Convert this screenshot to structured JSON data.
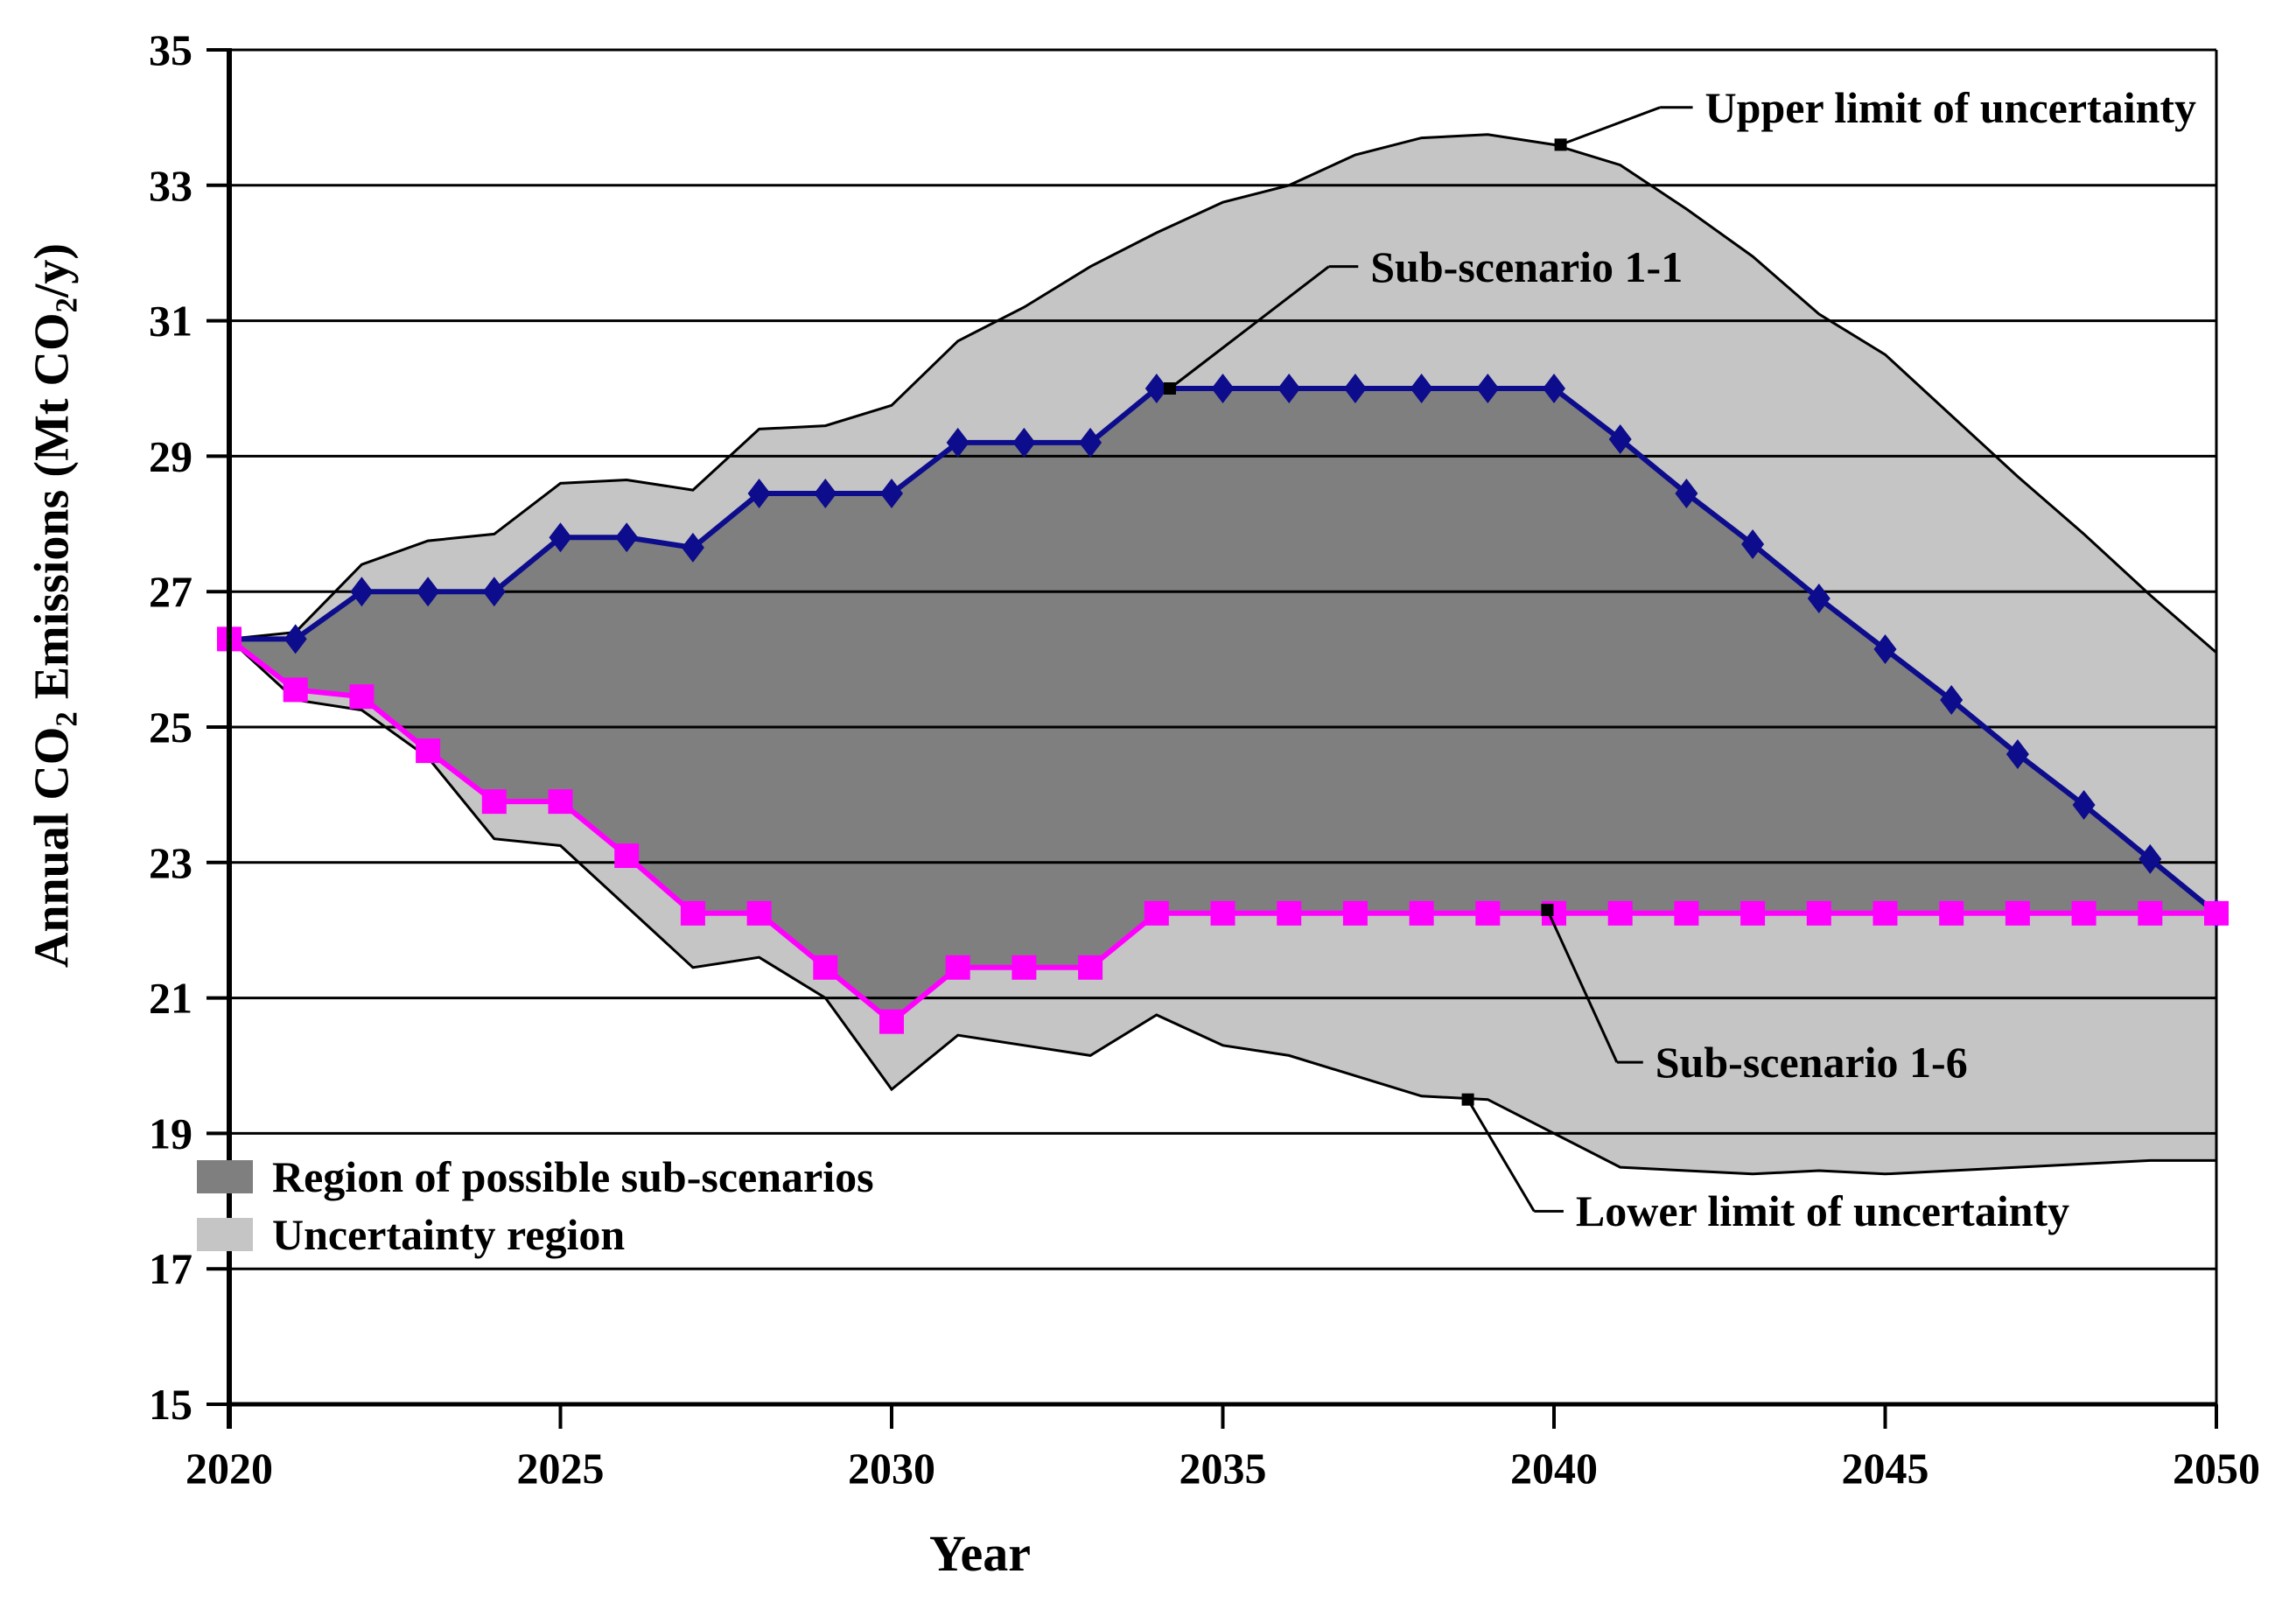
{
  "chart_data": {
    "type": "area",
    "title": "",
    "xlabel": "Year",
    "ylabel": "Annual CO₂ Emissions (Mt CO₂/y)",
    "ylabel_parts": [
      "Annual CO",
      "2",
      " Emissions (Mt CO",
      "2",
      "/y)"
    ],
    "x_range": [
      2020,
      2050
    ],
    "y_range": [
      15,
      35
    ],
    "x_ticks": [
      2020,
      2025,
      2030,
      2035,
      2040,
      2045,
      2050
    ],
    "y_ticks": [
      15,
      17,
      19,
      21,
      23,
      25,
      27,
      29,
      31,
      33,
      35
    ],
    "grid": "horizontal",
    "legend_position": "lower-left",
    "colors": {
      "region_possible": "#7F7F7F",
      "uncertainty_region": "#C5C5C5",
      "sub_scenario_1_1": "#0C0C8C",
      "sub_scenario_1_6": "#FF00FF",
      "bounds": "#000000"
    },
    "years": [
      2020,
      2021,
      2022,
      2023,
      2024,
      2025,
      2026,
      2027,
      2028,
      2029,
      2030,
      2031,
      2032,
      2033,
      2034,
      2035,
      2036,
      2037,
      2038,
      2039,
      2040,
      2041,
      2042,
      2043,
      2044,
      2045,
      2046,
      2047,
      2048,
      2049,
      2050
    ],
    "series": [
      {
        "name": "Upper limit of uncertainty",
        "role": "upper_bound",
        "marker": "none",
        "color": "#000000",
        "values": [
          26.3,
          26.4,
          27.4,
          27.75,
          27.85,
          28.6,
          28.65,
          28.5,
          29.4,
          29.45,
          29.75,
          30.7,
          31.2,
          31.8,
          32.3,
          32.75,
          33.0,
          33.45,
          33.7,
          33.75,
          33.6,
          33.3,
          32.65,
          31.95,
          31.1,
          30.5,
          29.6,
          28.7,
          27.85,
          26.95,
          26.1
        ]
      },
      {
        "name": "Sub-scenario 1-1",
        "role": "scenario_high",
        "marker": "diamond",
        "color": "#0C0C8C",
        "values": [
          26.3,
          26.3,
          27.0,
          27.0,
          27.0,
          27.8,
          27.8,
          27.65,
          28.45,
          28.45,
          28.45,
          29.2,
          29.2,
          29.2,
          30.0,
          30.0,
          30.0,
          30.0,
          30.0,
          30.0,
          30.0,
          29.25,
          28.45,
          27.7,
          26.9,
          26.15,
          25.4,
          24.6,
          23.85,
          23.05,
          22.25
        ]
      },
      {
        "name": "Sub-scenario 1-6",
        "role": "scenario_low",
        "marker": "square",
        "color": "#FF00FF",
        "values": [
          26.3,
          25.55,
          25.45,
          24.65,
          23.9,
          23.9,
          23.1,
          22.25,
          22.25,
          21.45,
          20.65,
          21.45,
          21.45,
          21.45,
          22.25,
          22.25,
          22.25,
          22.25,
          22.25,
          22.25,
          22.25,
          22.25,
          22.25,
          22.25,
          22.25,
          22.25,
          22.25,
          22.25,
          22.25,
          22.25,
          22.25
        ]
      },
      {
        "name": "Lower limit of uncertainty",
        "role": "lower_bound",
        "marker": "none",
        "color": "#000000",
        "values": [
          26.3,
          25.4,
          25.25,
          24.55,
          23.35,
          23.25,
          22.35,
          21.45,
          21.6,
          21.0,
          19.65,
          20.45,
          20.3,
          20.15,
          20.75,
          20.3,
          20.15,
          19.85,
          19.55,
          19.5,
          19.0,
          18.5,
          18.45,
          18.4,
          18.45,
          18.4,
          18.45,
          18.5,
          18.55,
          18.6,
          18.6
        ]
      }
    ],
    "regions": [
      {
        "label": "Region of possible sub-scenarios",
        "color": "#7F7F7F",
        "between": [
          "Sub-scenario 1-1",
          "Sub-scenario 1-6"
        ]
      },
      {
        "label": "Uncertainty region",
        "color": "#C5C5C5",
        "between": [
          "Upper limit of uncertainty",
          "Lower limit of uncertainty"
        ]
      }
    ],
    "legend": [
      {
        "label": "Region of possible sub-scenarios",
        "color": "#7F7F7F"
      },
      {
        "label": "Uncertainty region",
        "color": "#C5C5C5"
      }
    ],
    "annotations": [
      {
        "id": "upper-limit",
        "label": "Upper limit of uncertainty",
        "anchor": [
          2040.1,
          33.6
        ],
        "elbow": [
          2041.6,
          34.15
        ],
        "text": [
          2042.2,
          34.15
        ]
      },
      {
        "id": "sub-scenario-1-1",
        "label": "Sub-scenario 1-1",
        "anchor": [
          2034.2,
          30.0
        ],
        "elbow": [
          2036.6,
          31.8
        ],
        "text": [
          2037.15,
          31.8
        ]
      },
      {
        "id": "sub-scenario-1-6",
        "label": "Sub-scenario 1-6",
        "anchor": [
          2039.9,
          22.3
        ],
        "elbow": [
          2040.95,
          20.05
        ],
        "text": [
          2041.45,
          20.05
        ]
      },
      {
        "id": "lower-limit",
        "label": "Lower limit of uncertainty",
        "anchor": [
          2038.7,
          19.5
        ],
        "elbow": [
          2039.7,
          17.85
        ],
        "text": [
          2040.25,
          17.85
        ]
      }
    ]
  }
}
